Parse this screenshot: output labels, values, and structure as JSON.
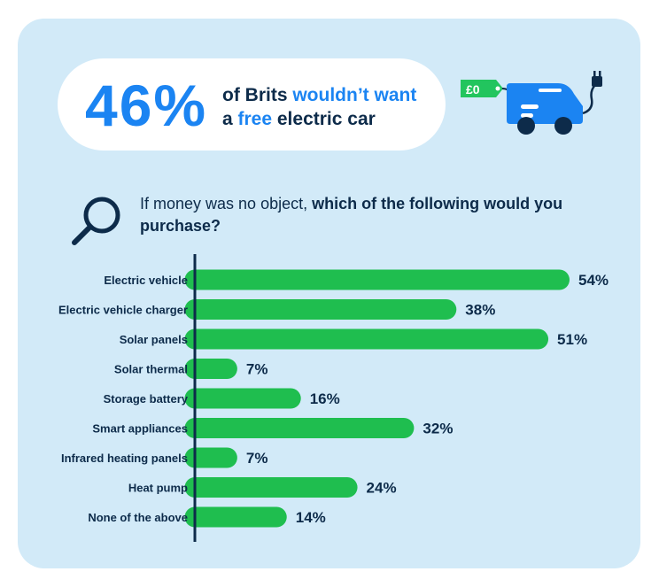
{
  "headline": {
    "stat": "46%",
    "line1_plain": "of Brits ",
    "line1_highlight": "wouldn’t want",
    "line2_plain_a": "a ",
    "line2_highlight": "free",
    "line2_plain_b": " electric car"
  },
  "car_tag": "£0",
  "question": {
    "plain": "If money was no object, ",
    "bold": "which of the following would you purchase?"
  },
  "colors": {
    "bar": "#1fbe4f",
    "accent": "#1b84f2",
    "text": "#0d2b4a",
    "panel": "#d2eaf8",
    "tag": "#22c55e"
  },
  "icons": [
    "search-icon",
    "electric-car-icon",
    "price-tag-icon",
    "plug-icon"
  ],
  "chart_data": {
    "type": "bar",
    "orientation": "horizontal",
    "categories": [
      "Electric vehicle",
      "Electric vehicle charger",
      "Solar panels",
      "Solar thermal",
      "Storage battery",
      "Smart appliances",
      "Infrared heating panels",
      "Heat pump",
      "None of the above"
    ],
    "values": [
      54,
      38,
      51,
      7,
      16,
      32,
      7,
      24,
      14
    ],
    "value_labels": [
      "54%",
      "38%",
      "51%",
      "7%",
      "16%",
      "32%",
      "7%",
      "24%",
      "14%"
    ],
    "unit": "%",
    "xlim": [
      0,
      54
    ],
    "grid": false,
    "legend": "none"
  }
}
